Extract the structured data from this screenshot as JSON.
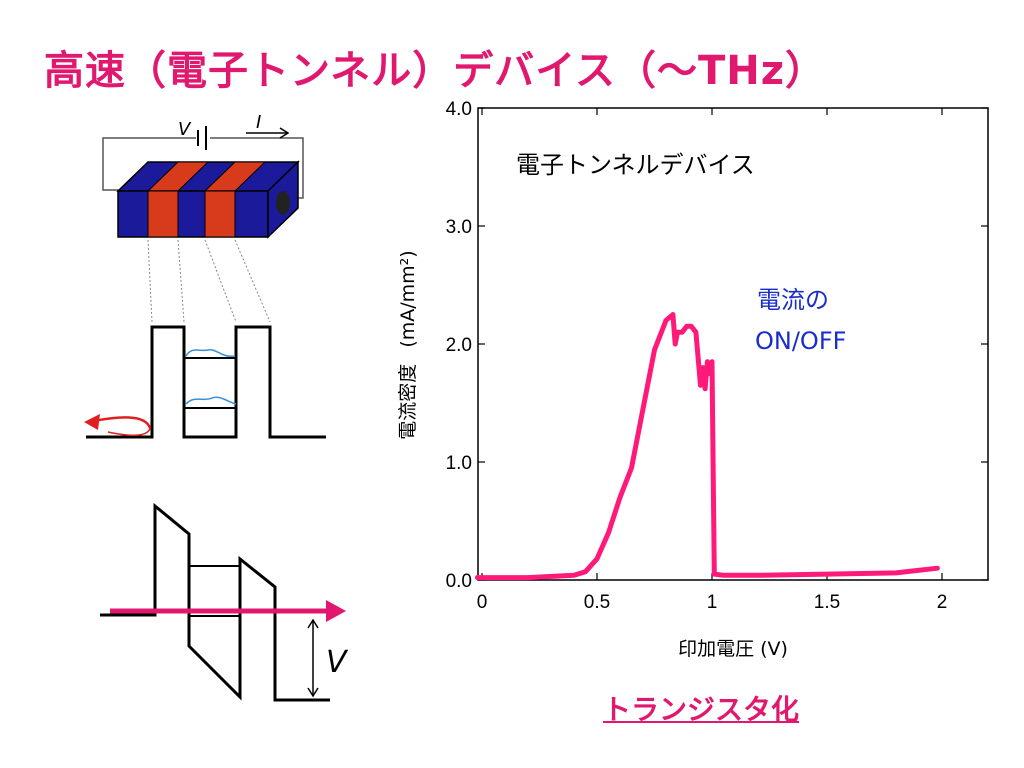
{
  "page": {
    "title": "高速（電子トンネル）デバイス（～THz）",
    "title_color": "#e0186e",
    "link_text": "トランジスタ化",
    "link_color": "#e0186e"
  },
  "diagram": {
    "voltage_symbol": "V",
    "current_symbol": "I",
    "bias_symbol": "V",
    "colors": {
      "barrier": "#1a1a9a",
      "well": "#d83a1c",
      "wave": "#3a8fd8",
      "arrow_red": "#e02020",
      "arrow_pink": "#e0186e"
    }
  },
  "chart_data": {
    "type": "line",
    "title": "",
    "xlabel": "印加電圧 (V)",
    "ylabel": "電流密度 (mA/mm²)",
    "ylabel_main": "電流密度",
    "ylabel_unit": "(mA/mm²)",
    "xlim": [
      0,
      2.2
    ],
    "ylim": [
      0,
      4.0
    ],
    "xticks": [
      0,
      0.5,
      1,
      1.5,
      2
    ],
    "xtick_labels": [
      "0",
      "0.5",
      "1",
      "1.5",
      "2"
    ],
    "yticks": [
      0,
      1,
      2,
      3,
      4
    ],
    "ytick_labels": [
      "0.0",
      "1.0",
      "2.0",
      "3.0",
      "4.0"
    ],
    "grid": false,
    "annotations": [
      {
        "text": "電子トンネルデバイス",
        "color": "#000000"
      },
      {
        "text": "電流の",
        "color": "#1a2ccc"
      },
      {
        "text": "ON/OFF",
        "color": "#1a2ccc"
      }
    ],
    "series": [
      {
        "color": "#ff1a7a",
        "x": [
          -0.02,
          0.2,
          0.4,
          0.45,
          0.5,
          0.55,
          0.6,
          0.65,
          0.7,
          0.75,
          0.8,
          0.83,
          0.84,
          0.85,
          0.87,
          0.89,
          0.91,
          0.93,
          0.95,
          0.96,
          0.97,
          0.98,
          0.99,
          1.0,
          1.01,
          1.05,
          1.2,
          1.5,
          1.8,
          1.98
        ],
        "y": [
          0.02,
          0.02,
          0.04,
          0.07,
          0.18,
          0.4,
          0.7,
          0.95,
          1.45,
          1.95,
          2.2,
          2.25,
          2.0,
          2.1,
          2.1,
          2.15,
          2.15,
          2.1,
          1.65,
          1.8,
          1.62,
          1.85,
          1.75,
          1.85,
          0.05,
          0.04,
          0.04,
          0.05,
          0.06,
          0.1
        ]
      }
    ]
  }
}
